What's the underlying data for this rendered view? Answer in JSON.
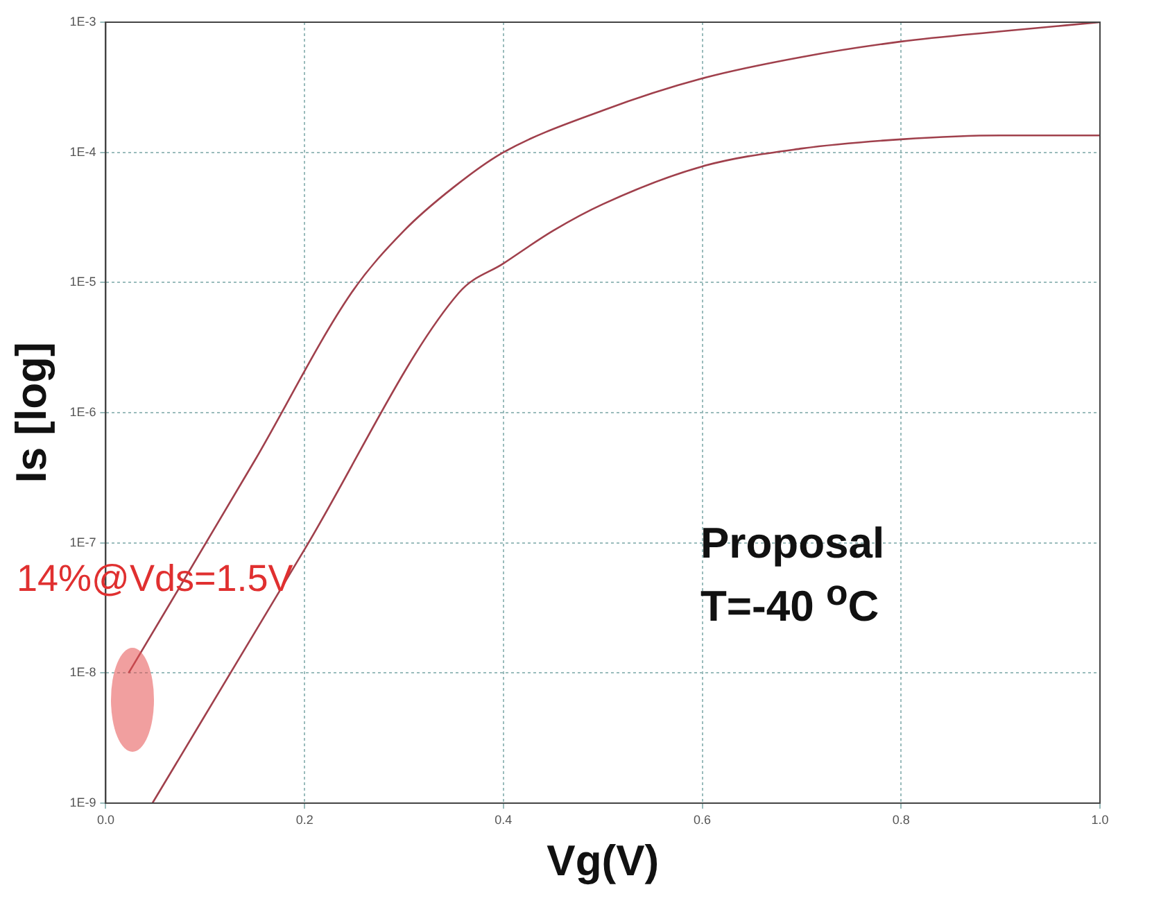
{
  "chart_data": {
    "type": "line",
    "xlabel": "Vg(V)",
    "ylabel": "Is [log]",
    "log": "y",
    "grid": true,
    "legend": false,
    "marker": "none",
    "line_style": "solid",
    "xlim": [
      0,
      1
    ],
    "xticks": [
      {
        "value": 0,
        "label": "0.0"
      },
      {
        "value": 0.2,
        "label": "0.2"
      },
      {
        "value": 0.4,
        "label": "0.4"
      },
      {
        "value": 0.6,
        "label": "0.6"
      },
      {
        "value": 0.8,
        "label": "0.8"
      },
      {
        "value": 1,
        "label": "1.0"
      }
    ],
    "ylim": [
      1e-09,
      0.001
    ],
    "yticks": [
      {
        "value": 1e-09,
        "label": "1E-9"
      },
      {
        "value": 1e-08,
        "label": "1E-8"
      },
      {
        "value": 1e-07,
        "label": "1E-7"
      },
      {
        "value": 1e-06,
        "label": "1E-6"
      },
      {
        "value": 1e-05,
        "label": "1E-5"
      },
      {
        "value": 0.0001,
        "label": "1E-4"
      },
      {
        "value": 0.001,
        "label": "1E-3"
      }
    ],
    "series": [
      {
        "color": "#a0404c",
        "x": [
          0.023,
          0.15,
          0.247,
          0.3,
          0.35,
          0.4,
          0.5,
          0.6,
          0.7,
          0.8,
          0.9,
          1.0
        ],
        "values": [
          1e-08,
          4.3e-07,
          8.3e-06,
          2.5e-05,
          5.4e-05,
          0.0001,
          0.00021,
          0.00037,
          0.00054,
          0.00071,
          0.00085,
          0.001
        ]
      },
      {
        "color": "#a0404c",
        "x": [
          0.047,
          0.2,
          0.355,
          0.4,
          0.45,
          0.5,
          0.6,
          0.7,
          0.8,
          0.9,
          1.0
        ],
        "values": [
          1e-09,
          8.9e-08,
          8.3e-06,
          1.4e-05,
          2.5e-05,
          4e-05,
          7.8e-05,
          0.000107,
          0.000126,
          0.000135,
          0.000135
        ]
      }
    ],
    "annotations": [
      "14%@Vds=1.5V",
      "Proposal\nT=-40 $^{o}$C"
    ]
  }
}
